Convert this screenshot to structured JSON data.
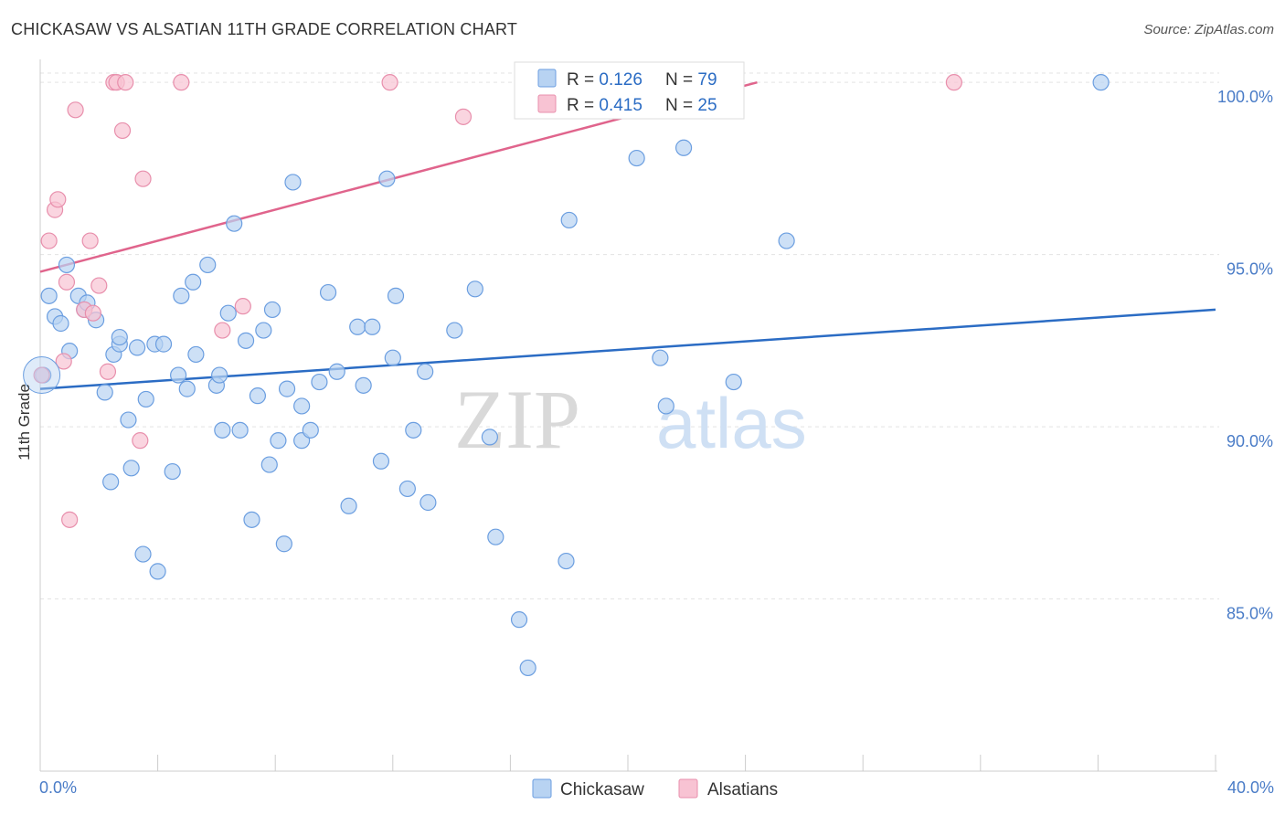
{
  "title": "CHICKASAW VS ALSATIAN 11TH GRADE CORRELATION CHART",
  "source": "Source: ZipAtlas.com",
  "watermark": {
    "zip": "ZIP",
    "atlas": "atlas"
  },
  "colors": {
    "blue_fill": "#b8d3f2",
    "blue_stroke": "#6b9ee0",
    "blue_line": "#2b6cc4",
    "pink_fill": "#f8c3d3",
    "pink_stroke": "#e88fac",
    "pink_line": "#e0648c",
    "tick_text": "#4a7cc7",
    "grid": "#e3e3e3"
  },
  "legend": [
    {
      "r_label": "R = ",
      "r_value": "0.126",
      "n_label": "N = ",
      "n_value": "79"
    },
    {
      "r_label": "R = ",
      "r_value": "0.415",
      "n_label": "N = ",
      "n_value": "25"
    }
  ],
  "chart_data": {
    "type": "scatter",
    "title": "CHICKASAW VS ALSATIAN 11TH GRADE CORRELATION CHART",
    "xlabel": "",
    "ylabel": "11th Grade",
    "xlim": [
      0,
      40
    ],
    "ylim": [
      80.0,
      100.8
    ],
    "x_tick_labels": [
      "0.0%",
      "40.0%"
    ],
    "y_ticks": [
      85,
      90,
      95,
      100
    ],
    "y_tick_labels": [
      "85.0%",
      "90.0%",
      "95.0%",
      "100.0%"
    ],
    "grid": true,
    "legend_position": "top-center and bottom",
    "series": [
      {
        "name": "Chickasaw",
        "r": 0.126,
        "n": 79,
        "trend": [
          [
            0,
            91.1
          ],
          [
            40,
            93.4
          ]
        ],
        "points": [
          [
            0.1,
            91.5
          ],
          [
            0.3,
            93.8
          ],
          [
            0.5,
            93.2
          ],
          [
            0.7,
            93.0
          ],
          [
            0.9,
            94.7
          ],
          [
            1.0,
            92.2
          ],
          [
            1.3,
            93.8
          ],
          [
            1.5,
            93.4
          ],
          [
            1.6,
            93.6
          ],
          [
            1.9,
            93.1
          ],
          [
            2.2,
            91.0
          ],
          [
            2.4,
            88.4
          ],
          [
            2.5,
            92.1
          ],
          [
            2.7,
            92.4
          ],
          [
            2.7,
            92.6
          ],
          [
            3.0,
            90.2
          ],
          [
            3.1,
            88.8
          ],
          [
            3.3,
            92.3
          ],
          [
            3.5,
            86.3
          ],
          [
            3.6,
            90.8
          ],
          [
            3.9,
            92.4
          ],
          [
            4.0,
            85.8
          ],
          [
            4.2,
            92.4
          ],
          [
            4.5,
            88.7
          ],
          [
            4.7,
            91.5
          ],
          [
            4.8,
            93.8
          ],
          [
            5.0,
            91.1
          ],
          [
            5.2,
            94.2
          ],
          [
            5.3,
            92.1
          ],
          [
            5.7,
            94.7
          ],
          [
            6.0,
            91.2
          ],
          [
            6.1,
            91.5
          ],
          [
            6.2,
            89.9
          ],
          [
            6.4,
            93.3
          ],
          [
            6.6,
            95.9
          ],
          [
            6.8,
            89.9
          ],
          [
            7.0,
            92.5
          ],
          [
            7.2,
            87.3
          ],
          [
            7.4,
            90.9
          ],
          [
            7.6,
            92.8
          ],
          [
            7.8,
            88.9
          ],
          [
            7.9,
            93.4
          ],
          [
            8.1,
            89.6
          ],
          [
            8.3,
            86.6
          ],
          [
            8.4,
            91.1
          ],
          [
            8.6,
            97.1
          ],
          [
            8.9,
            89.6
          ],
          [
            8.9,
            90.6
          ],
          [
            9.2,
            89.9
          ],
          [
            9.5,
            91.3
          ],
          [
            9.8,
            93.9
          ],
          [
            10.1,
            91.6
          ],
          [
            10.5,
            87.7
          ],
          [
            10.8,
            92.9
          ],
          [
            11.0,
            91.2
          ],
          [
            11.3,
            92.9
          ],
          [
            11.6,
            89.0
          ],
          [
            11.8,
            97.2
          ],
          [
            12.0,
            92.0
          ],
          [
            12.1,
            93.8
          ],
          [
            12.5,
            88.2
          ],
          [
            12.7,
            89.9
          ],
          [
            13.1,
            91.6
          ],
          [
            13.2,
            87.8
          ],
          [
            14.1,
            92.8
          ],
          [
            14.8,
            94.0
          ],
          [
            15.3,
            89.7
          ],
          [
            15.5,
            86.8
          ],
          [
            16.3,
            84.4
          ],
          [
            16.6,
            83.0
          ],
          [
            17.9,
            86.1
          ],
          [
            18.0,
            96.0
          ],
          [
            20.3,
            97.8
          ],
          [
            21.1,
            92.0
          ],
          [
            21.3,
            90.6
          ],
          [
            21.9,
            98.1
          ],
          [
            23.6,
            91.3
          ],
          [
            25.4,
            95.4
          ],
          [
            36.1,
            100.0
          ]
        ]
      },
      {
        "name": "Alsatians",
        "r": 0.415,
        "n": 25,
        "trend": [
          [
            0,
            94.5
          ],
          [
            24.4,
            100.0
          ]
        ],
        "points": [
          [
            0.05,
            91.5
          ],
          [
            0.3,
            95.4
          ],
          [
            0.5,
            96.3
          ],
          [
            0.6,
            96.6
          ],
          [
            0.8,
            91.9
          ],
          [
            0.9,
            94.2
          ],
          [
            1.0,
            87.3
          ],
          [
            1.2,
            99.2
          ],
          [
            1.5,
            93.4
          ],
          [
            1.7,
            95.4
          ],
          [
            1.8,
            93.3
          ],
          [
            2.0,
            94.1
          ],
          [
            2.3,
            91.6
          ],
          [
            2.5,
            100.0
          ],
          [
            2.6,
            100.0
          ],
          [
            2.8,
            98.6
          ],
          [
            2.9,
            100.0
          ],
          [
            3.4,
            89.6
          ],
          [
            3.5,
            97.2
          ],
          [
            4.8,
            100.0
          ],
          [
            6.2,
            92.8
          ],
          [
            6.9,
            93.5
          ],
          [
            11.9,
            100.0
          ],
          [
            14.4,
            99.0
          ],
          [
            31.1,
            100.0
          ]
        ]
      }
    ]
  }
}
